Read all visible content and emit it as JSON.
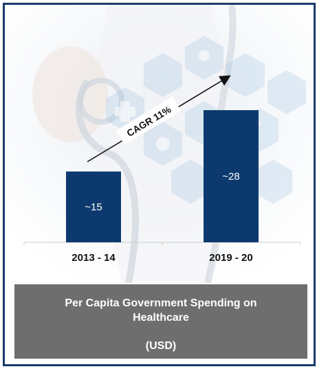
{
  "chart_data": {
    "type": "bar",
    "categories": [
      "2013 - 14",
      "2019 - 20"
    ],
    "values": [
      15,
      28
    ],
    "data_labels": [
      "~15",
      "~28"
    ],
    "ylim": [
      0,
      35
    ],
    "annotation": "CAGR 11%",
    "title": "Per Capita Government Spending on Healthcare",
    "unit_label": "(USD)",
    "bar_color": "#0d3a6e",
    "grid": false
  },
  "colors": {
    "border": "#1b3a6b",
    "caption_bg": "#6e6e6e",
    "background_art": "#9fc3e3"
  }
}
